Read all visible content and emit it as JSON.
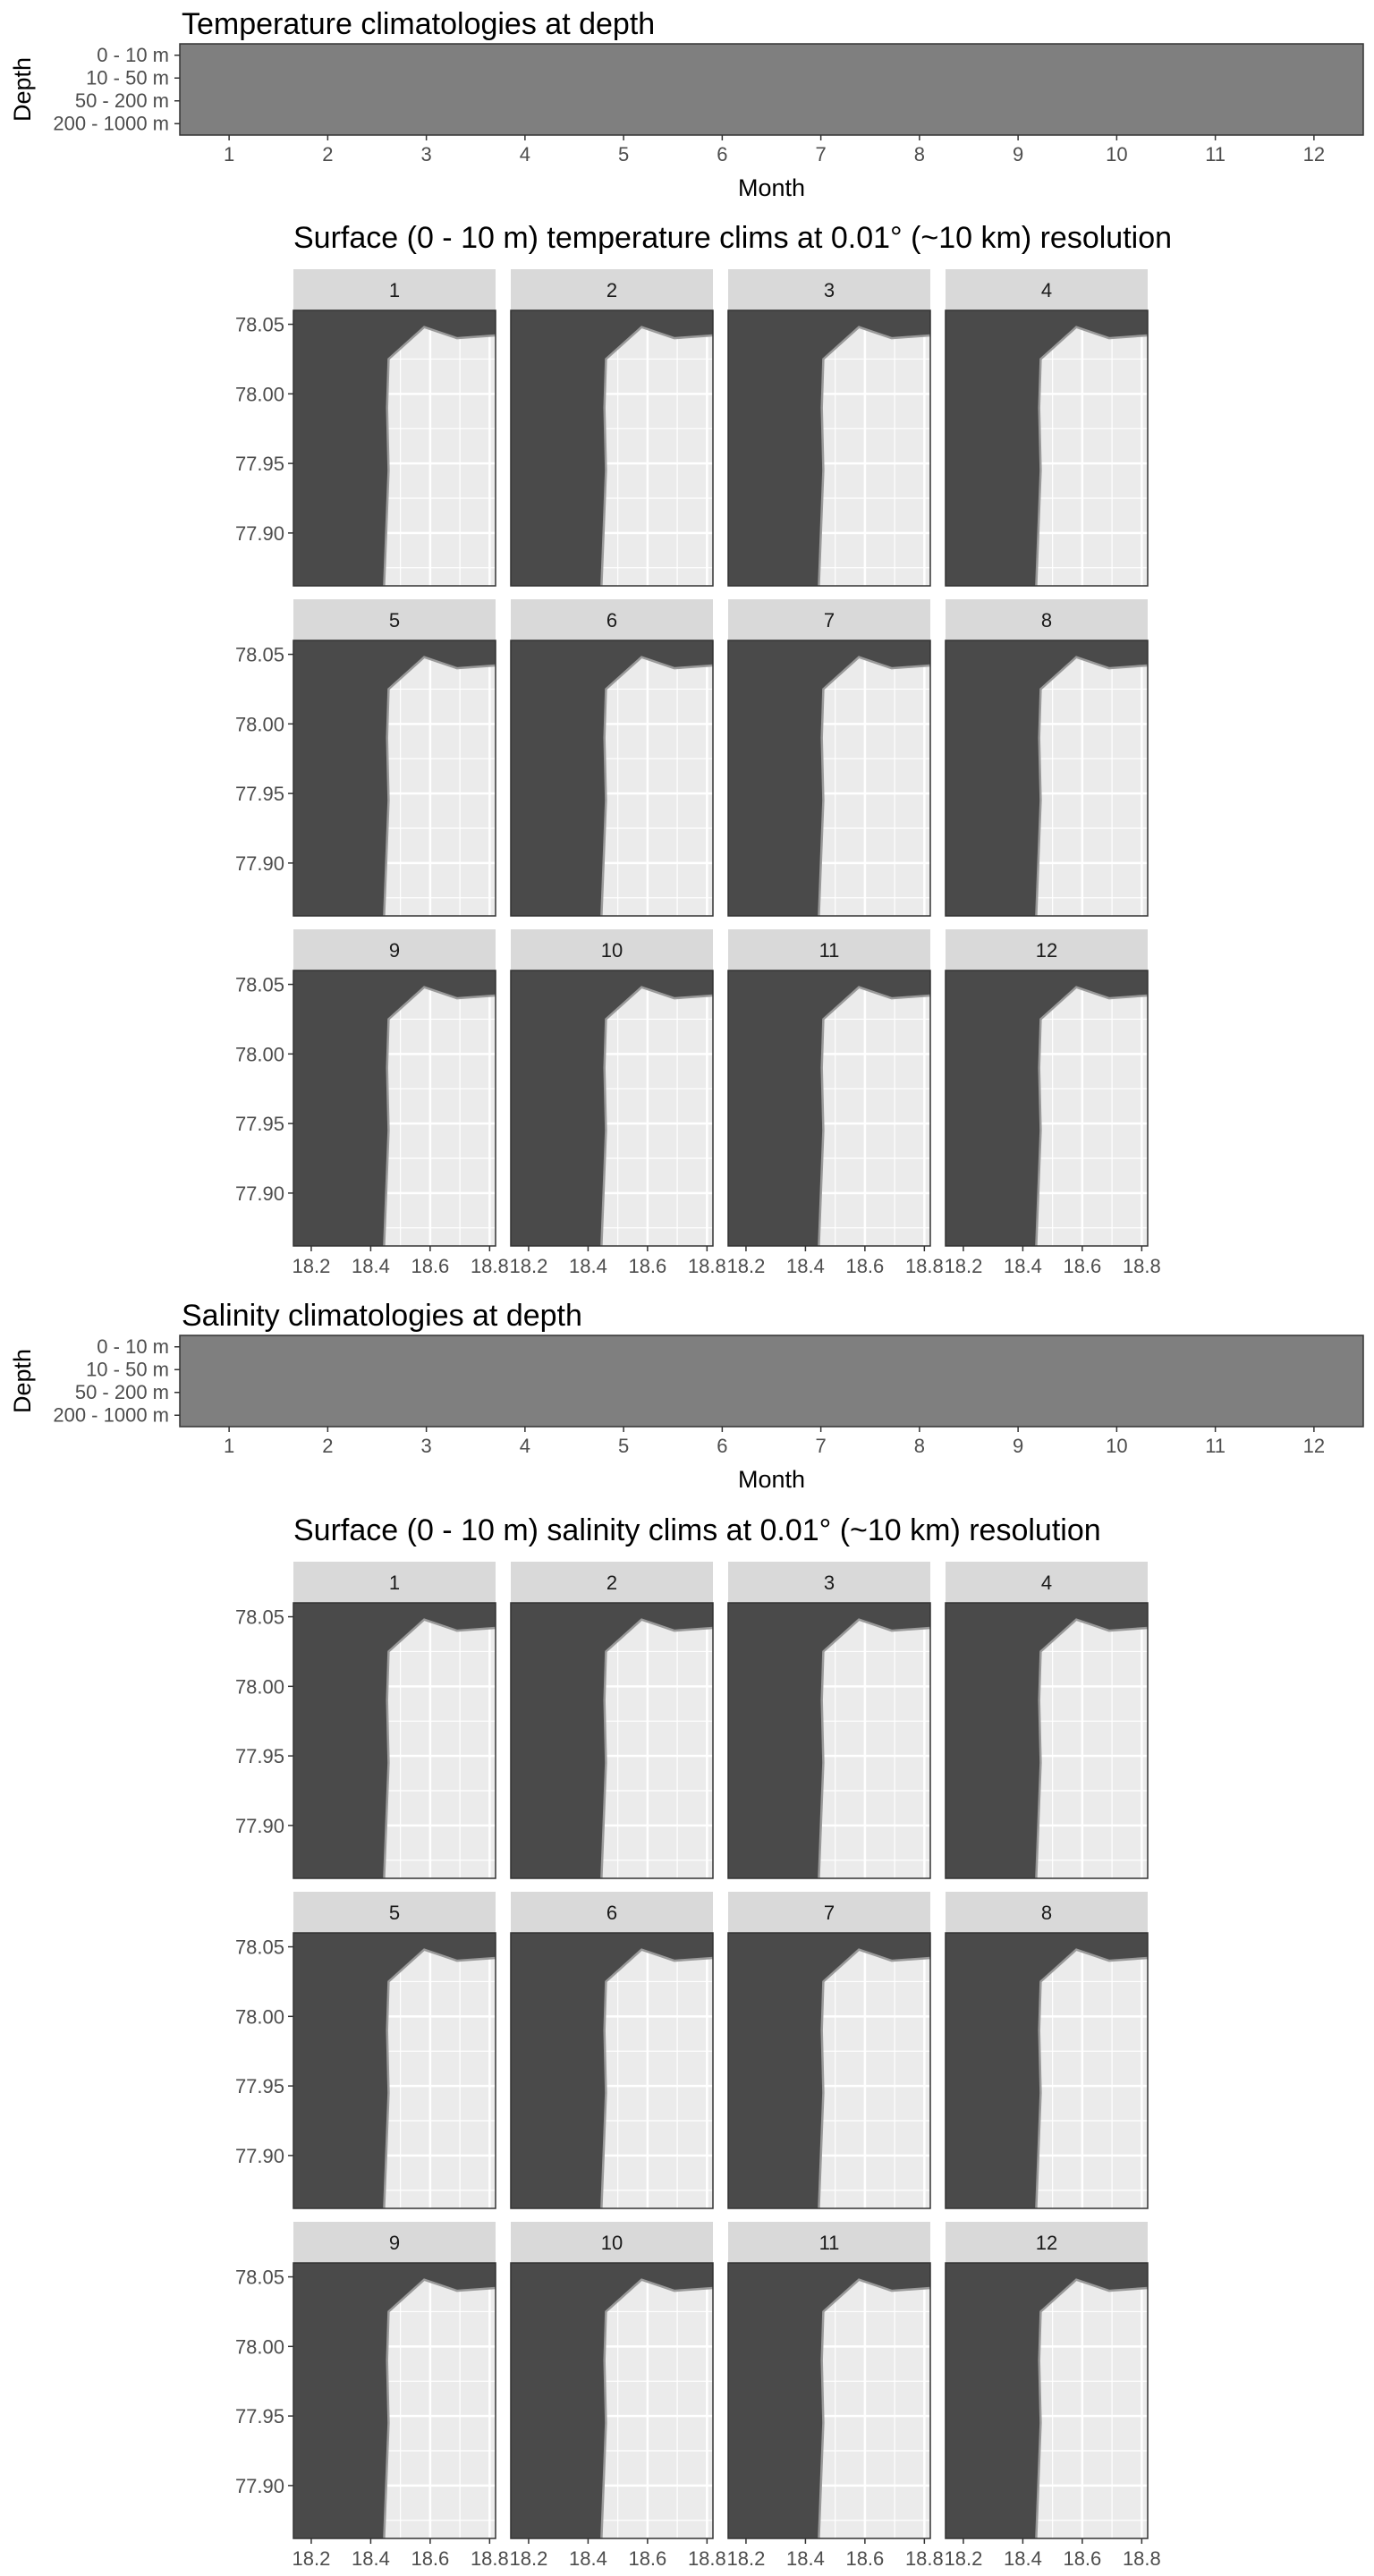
{
  "chart_data": [
    {
      "type": "heatmap",
      "title": "Temperature climatologies at depth",
      "xlabel": "Month",
      "ylabel": "Depth",
      "x": [
        1,
        2,
        3,
        4,
        5,
        6,
        7,
        8,
        9,
        10,
        11,
        12
      ],
      "xlim": [
        0.5,
        12.5
      ],
      "y_categories": [
        "0 - 10 m",
        "10 - 50 m",
        "50 - 200 m",
        "200 - 1000 m"
      ],
      "fill_color": "#7f7f7f",
      "background_color": "#ffffff"
    },
    {
      "type": "map",
      "title": "Surface (0 - 10 m) temperature clims at 0.01° (~10 km) resolution",
      "facets": [
        "1",
        "2",
        "3",
        "4",
        "5",
        "6",
        "7",
        "8",
        "9",
        "10",
        "11",
        "12"
      ],
      "xlim": [
        18.14,
        18.82
      ],
      "ylim": [
        77.862,
        78.06
      ],
      "x_ticks": [
        18.2,
        18.4,
        18.6,
        18.8
      ],
      "x_tick_labels": [
        "18.2",
        "18.4",
        "18.6",
        "18.8"
      ],
      "y_ticks": [
        77.9,
        77.95,
        78.0,
        78.05
      ],
      "y_tick_labels": [
        "77.90",
        "77.95",
        "78.00",
        "78.05"
      ],
      "land_color": "#4a4a4a",
      "land_outline_color": "#9a9a9a",
      "panel_background": "#ebebeb",
      "strip_color": "#d9d9d9",
      "coastline": [
        [
          18.445,
          77.862
        ],
        [
          18.46,
          77.945
        ],
        [
          18.455,
          77.99
        ],
        [
          18.46,
          78.025
        ],
        [
          18.58,
          78.048
        ],
        [
          18.69,
          78.04
        ],
        [
          18.82,
          78.042
        ]
      ]
    },
    {
      "type": "heatmap",
      "title": "Salinity climatologies at depth",
      "xlabel": "Month",
      "ylabel": "Depth",
      "x": [
        1,
        2,
        3,
        4,
        5,
        6,
        7,
        8,
        9,
        10,
        11,
        12
      ],
      "xlim": [
        0.5,
        12.5
      ],
      "y_categories": [
        "0 - 10 m",
        "10 - 50 m",
        "50 - 200 m",
        "200 - 1000 m"
      ],
      "fill_color": "#7f7f7f",
      "background_color": "#ffffff"
    },
    {
      "type": "map",
      "title": "Surface (0 - 10 m) salinity clims at 0.01° (~10 km) resolution",
      "facets": [
        "1",
        "2",
        "3",
        "4",
        "5",
        "6",
        "7",
        "8",
        "9",
        "10",
        "11",
        "12"
      ],
      "xlim": [
        18.14,
        18.82
      ],
      "ylim": [
        77.862,
        78.06
      ],
      "x_ticks": [
        18.2,
        18.4,
        18.6,
        18.8
      ],
      "x_tick_labels": [
        "18.2",
        "18.4",
        "18.6",
        "18.8"
      ],
      "y_ticks": [
        77.9,
        77.95,
        78.0,
        78.05
      ],
      "y_tick_labels": [
        "77.90",
        "77.95",
        "78.00",
        "78.05"
      ],
      "land_color": "#4a4a4a",
      "land_outline_color": "#9a9a9a",
      "panel_background": "#ebebeb",
      "strip_color": "#d9d9d9",
      "coastline": [
        [
          18.445,
          77.862
        ],
        [
          18.46,
          77.945
        ],
        [
          18.455,
          77.99
        ],
        [
          18.46,
          78.025
        ],
        [
          18.58,
          78.048
        ],
        [
          18.69,
          78.04
        ],
        [
          18.82,
          78.042
        ]
      ]
    }
  ]
}
